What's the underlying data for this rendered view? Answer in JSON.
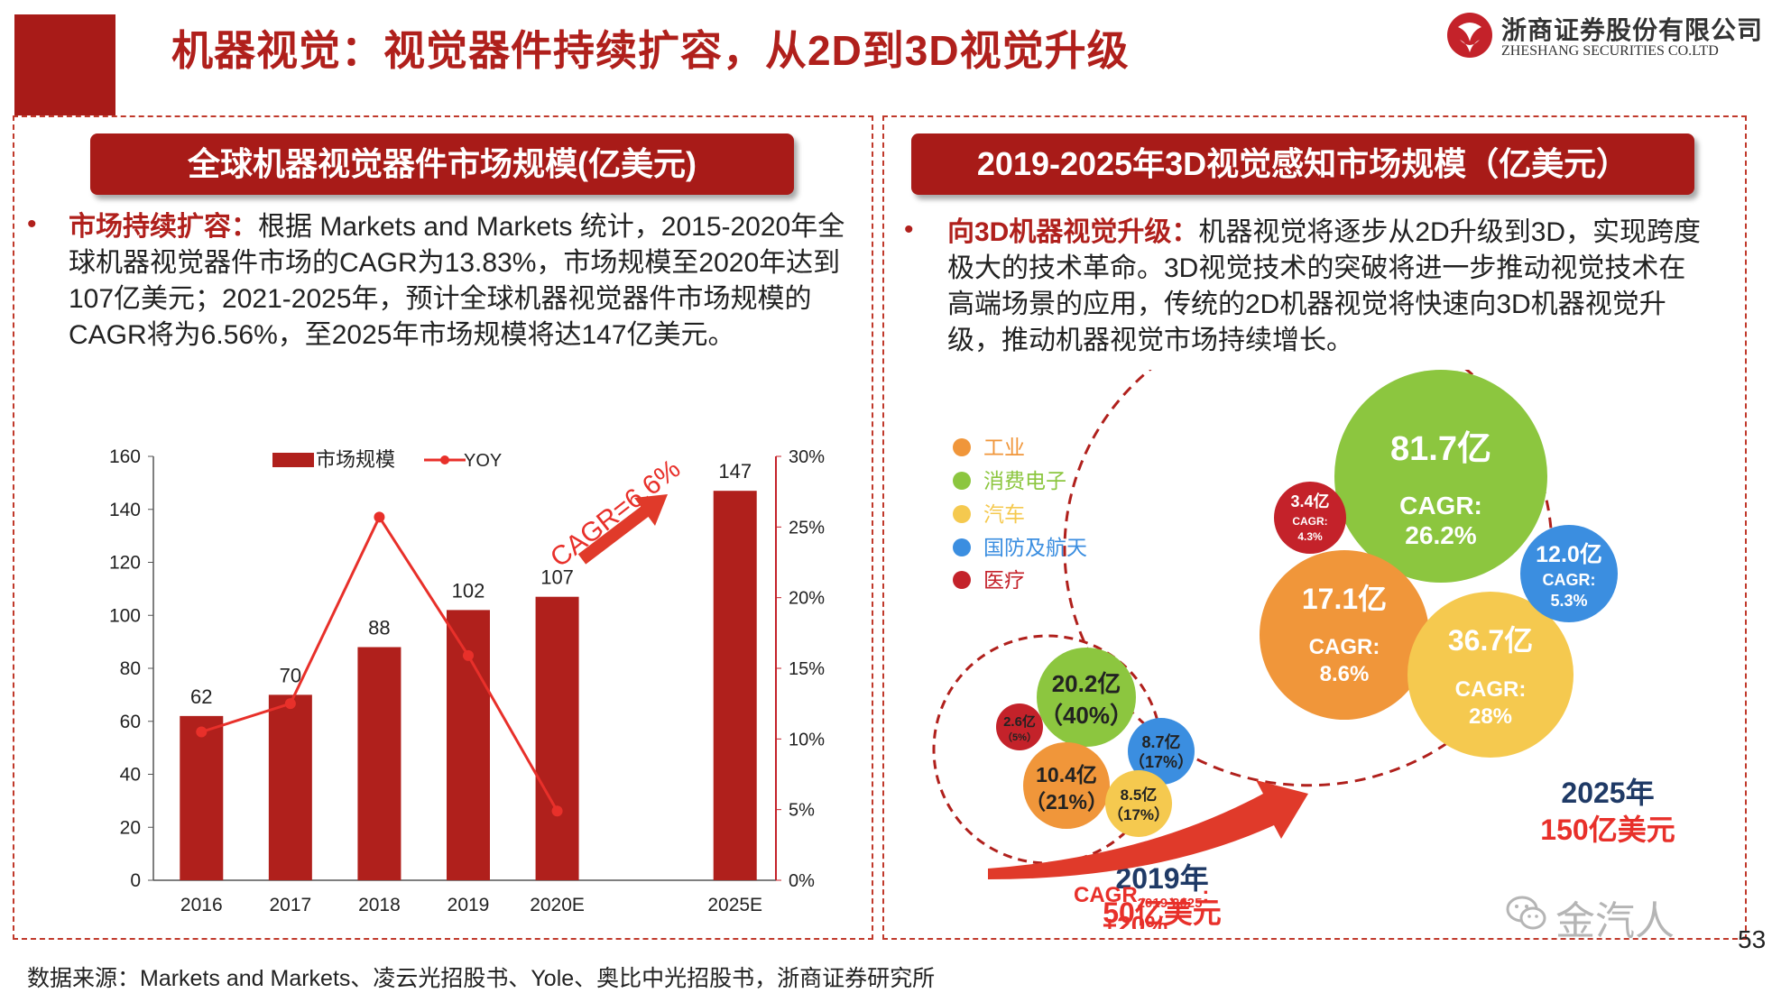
{
  "slide": {
    "title": "机器视觉：视觉器件持续扩容，从2D到3D视觉升级",
    "page_number": "53",
    "source_note": "数据来源：Markets and Markets、凌云光招股书、Yole、奥比中光招股书，浙商证券研究所"
  },
  "logo": {
    "cn": "浙商证券股份有限公司",
    "en": "ZHESHANG SECURITIES CO.LTD"
  },
  "left_panel": {
    "banner": "全球机器视觉器件市场规模(亿美元)",
    "bullet_head": "市场持续扩容：",
    "bullet_body": "根据 Markets and Markets 统计，2015-2020年全球机器视觉器件市场的CAGR为13.83%，市场规模至2020年达到107亿美元；2021-2025年，预计全球机器视觉器件市场规模的CAGR将为6.56%，至2025年市场规模将达147亿美元。"
  },
  "chart_data": {
    "type": "bar",
    "categories": [
      "2016",
      "2017",
      "2018",
      "2019",
      "2020E",
      "2025E"
    ],
    "series": [
      {
        "name": "市场规模",
        "values": [
          62,
          70,
          88,
          102,
          107,
          147
        ],
        "color": "#b0201c"
      },
      {
        "name": "YOY",
        "values": [
          10.5,
          12.5,
          25.7,
          15.9,
          4.9,
          null
        ],
        "color": "#e8302a",
        "axis": "right",
        "unit": "%"
      }
    ],
    "data_labels": [
      "62",
      "70",
      "88",
      "102",
      "107",
      "147"
    ],
    "y_ticks": [
      "0",
      "20",
      "40",
      "60",
      "80",
      "100",
      "120",
      "140",
      "160"
    ],
    "y2_ticks": [
      "0%",
      "5%",
      "10%",
      "15%",
      "20%",
      "25%",
      "30%"
    ],
    "ylim": [
      0,
      160
    ],
    "y2lim": [
      0,
      30
    ],
    "annotation": "CAGR=6.6%",
    "legend_position": "top"
  },
  "right_panel": {
    "banner": "2019-2025年3D视觉感知市场规模（亿美元）",
    "bullet_head": "向3D机器视觉升级：",
    "bullet_body": "机器视觉将逐步从2D升级到3D，实现跨度极大的技术革命。3D视觉技术的突破将进一步推动视觉技术在高端场景的应用，传统的2D机器视觉将快速向3D机器视觉升级，推动机器视觉市场持续增长。",
    "legend": [
      {
        "label": "工业",
        "color": "#f0963a"
      },
      {
        "label": "消费电子",
        "color": "#8cc63f"
      },
      {
        "label": "汽车",
        "color": "#f5c94f"
      },
      {
        "label": "国防及航天",
        "color": "#3b8ee0"
      },
      {
        "label": "医疗",
        "color": "#c4222a"
      }
    ],
    "bubbles_2019": [
      {
        "value": "20.2亿",
        "share": "（40%）",
        "color": "#8cc63f"
      },
      {
        "value": "10.4亿",
        "share": "（21%）",
        "color": "#f0963a"
      },
      {
        "value": "8.7亿",
        "share": "（17%）",
        "color": "#3b8ee0"
      },
      {
        "value": "8.5亿",
        "share": "（17%）",
        "color": "#f5c94f"
      },
      {
        "value": "2.6亿",
        "share": "（5%）",
        "color": "#c4222a"
      }
    ],
    "bubbles_2025": [
      {
        "value": "81.7亿",
        "cagr_label": "CAGR:",
        "cagr": "26.2%",
        "color": "#8cc63f"
      },
      {
        "value": "17.1亿",
        "cagr_label": "CAGR:",
        "cagr": "8.6%",
        "color": "#f0963a"
      },
      {
        "value": "36.7亿",
        "cagr_label": "CAGR:",
        "cagr": "28%",
        "color": "#f5c94f"
      },
      {
        "value": "12.0亿",
        "cagr_label": "CAGR:",
        "cagr": "5.3%",
        "color": "#3b8ee0"
      },
      {
        "value": "3.4亿",
        "cagr_label": "CAGR:",
        "cagr": "4.3%",
        "color": "#c4222a"
      }
    ],
    "year_2019": "2019年",
    "total_2019": "50亿美元",
    "year_2025": "2025年",
    "total_2025": "150亿美元",
    "cagr_main": "CAGR",
    "cagr_sub": "2019-2025",
    "cagr_colon": ":",
    "cagr_value": "+20%"
  },
  "watermark": {
    "text": "金汽人",
    "icon": "wechat-icon"
  }
}
